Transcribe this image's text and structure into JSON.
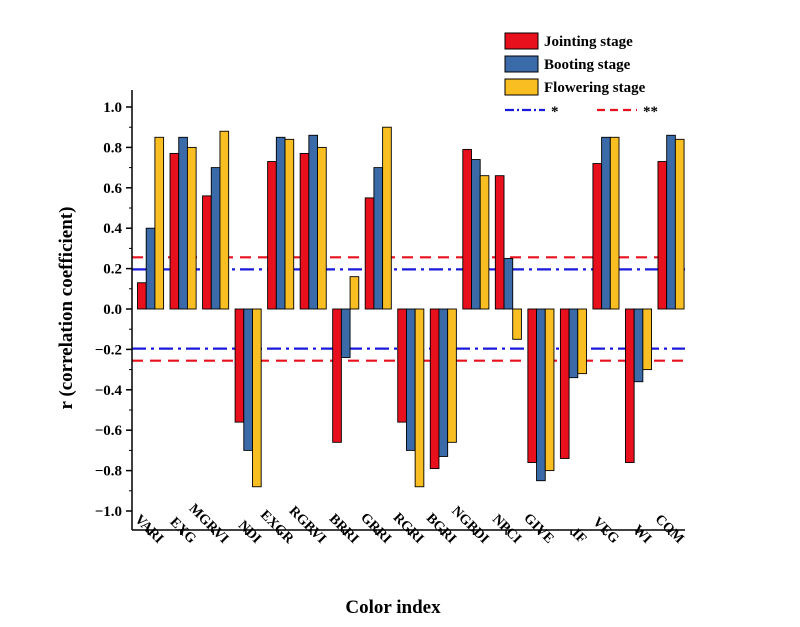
{
  "chart_data": {
    "type": "bar",
    "xlabel": "Color index",
    "ylabel": "r (correlation coefficient)",
    "ylim": [
      -1.1,
      1.1
    ],
    "yticks": [
      -1.0,
      -0.8,
      -0.6,
      -0.4,
      -0.2,
      0.0,
      0.2,
      0.4,
      0.6,
      0.8,
      1.0
    ],
    "categories": [
      "VARI",
      "EXG",
      "MGRVI",
      "NDI",
      "EXGR",
      "RGBVI",
      "BRRI",
      "GRRI",
      "RGRI",
      "BGRI",
      "NGBDI",
      "NPCI",
      "GIVE",
      "IF",
      "VEG",
      "WI",
      "COM"
    ],
    "series": [
      {
        "name": "Jointing stage",
        "color": "#e8101c",
        "values": [
          0.13,
          0.77,
          0.56,
          -0.56,
          0.73,
          0.77,
          -0.66,
          0.55,
          -0.56,
          -0.79,
          0.79,
          0.66,
          -0.76,
          -0.74,
          0.72,
          -0.76,
          0.73
        ]
      },
      {
        "name": "Booting stage",
        "color": "#3b6aa8",
        "values": [
          0.4,
          0.85,
          0.7,
          -0.7,
          0.85,
          0.86,
          -0.24,
          0.7,
          -0.7,
          -0.73,
          0.74,
          0.25,
          -0.85,
          -0.34,
          0.85,
          -0.36,
          0.86
        ]
      },
      {
        "name": "Flowering stage",
        "color": "#f8be22",
        "values": [
          0.85,
          0.8,
          0.88,
          -0.88,
          0.84,
          0.8,
          0.16,
          0.9,
          -0.88,
          -0.66,
          0.66,
          -0.15,
          -0.8,
          -0.32,
          0.85,
          -0.3,
          0.84
        ]
      }
    ],
    "reference_lines": [
      {
        "name": "*",
        "value": 0.196,
        "color": "#1a1adc",
        "style": "dash-dot"
      },
      {
        "name": "**",
        "value": 0.256,
        "color": "#e8101c",
        "style": "dashed"
      }
    ],
    "legend_position": "top-right",
    "grid": false
  }
}
